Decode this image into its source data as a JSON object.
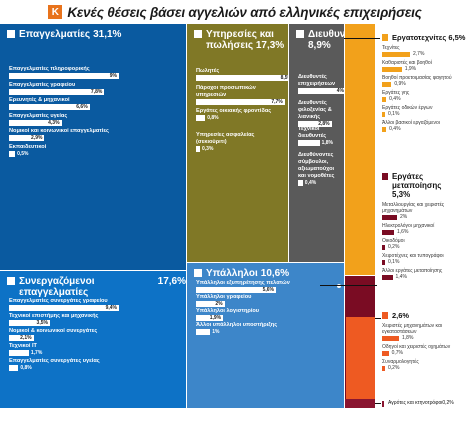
{
  "title": "Κενές θέσεις βάσει αγγελιών από ελληνικές επιχειρήσεις",
  "logo_icon": "k-logo-icon",
  "colors": {
    "professionals": "#0a5aa0",
    "services": "#807826",
    "managers": "#5a5a5a",
    "associates": "#0d72c6",
    "clerks": "#3d86c9",
    "crafts": "#f2a11b",
    "operators": "#7a0c23",
    "elementary": "#ee5a22",
    "agriculture": "#8a1530"
  },
  "chart_data": {
    "type": "treemap",
    "title": "Κενές θέσεις βάσει αγγελιών από ελληνικές επιχειρήσεις",
    "groups": [
      {
        "key": "professionals",
        "name": "Επαγγελματίες",
        "value": 31.1,
        "value_label": "31,1%",
        "items": [
          {
            "name": "Επαγγελματίες πληροφορικής",
            "value": 9,
            "value_label": "9%"
          },
          {
            "name": "Επαγγελματίες γραφείου",
            "value": 7.8,
            "value_label": "7,8%"
          },
          {
            "name": "Ερευνητές & μηχανικοί",
            "value": 6.6,
            "value_label": "6,6%"
          },
          {
            "name": "Επαγγελματίες υγείας",
            "value": 4.3,
            "value_label": "4,3%"
          },
          {
            "name": "Νομικοί και κοινωνικοί επαγγελματίες",
            "value": 2.9,
            "value_label": "2,9%"
          },
          {
            "name": "Εκπαιδευτικοί",
            "value": 0.5,
            "value_label": "0,5%"
          }
        ]
      },
      {
        "key": "services",
        "name": "Υπηρεσίες και πωλήσεις",
        "value": 17.3,
        "value_label": "17,3%",
        "items": [
          {
            "name": "Πωλητές",
            "value": 8.5,
            "value_label": "8,5%"
          },
          {
            "name": "Πάροχοι προσωπικών υπηρεσιών",
            "value": 7.7,
            "value_label": "7,7%"
          },
          {
            "name": "Εργάτες οικιακής φροντίδας",
            "value": 0.8,
            "value_label": "0,8%"
          },
          {
            "name": "Υπηρεσίες ασφαλείας (σεκιούριτι)",
            "value": 0.3,
            "value_label": "0,3%"
          }
        ]
      },
      {
        "key": "managers",
        "name": "Διευθυντές",
        "value": 8.9,
        "value_label": "8,9%",
        "items": [
          {
            "name": "Διευθυντές επιχειρήσεων",
            "value": 4,
            "value_label": "4%"
          },
          {
            "name": "Διευθυντές φιλοξενίας & λιανικής",
            "value": 2.8,
            "value_label": "2,8%"
          },
          {
            "name": "Τεχνικοί διευθυντές",
            "value": 1.8,
            "value_label": "1,8%"
          },
          {
            "name": "Διευθύνοντες σύμβουλοι, αξιωματούχοι και νομοθέτες",
            "value": 0.4,
            "value_label": "0,4%"
          }
        ]
      },
      {
        "key": "associates",
        "name": "Συνεργαζόμενοι επαγγελματίες",
        "value": 17.6,
        "value_label": "17,6%",
        "items": [
          {
            "name": "Επαγγελματίες συνεργάτες γραφείου",
            "value": 9.4,
            "value_label": "9,4%"
          },
          {
            "name": "Τεχνικοί επιστήμης και μηχανικής",
            "value": 3.5,
            "value_label": "3,5%"
          },
          {
            "name": "Νομικοί & κοινωνικοί συνεργάτες",
            "value": 2.1,
            "value_label": "2,1%"
          },
          {
            "name": "Τεχνικοί ΙΤ",
            "value": 1.7,
            "value_label": "1,7%"
          },
          {
            "name": "Επαγγελματίες συνεργάτες υγείας",
            "value": 0.8,
            "value_label": "0,8%"
          }
        ]
      },
      {
        "key": "clerks",
        "name": "Υπάλληλοι",
        "value": 10.6,
        "value_label": "10,6%",
        "items": [
          {
            "name": "Υπάλληλοι εξυπηρέτησης πελατών",
            "value": 5.6,
            "value_label": "5,6%"
          },
          {
            "name": "Υπάλληλοι γραφείου",
            "value": 2,
            "value_label": "2%"
          },
          {
            "name": "Υπάλληλοι λογιστηρίου",
            "value": 1.9,
            "value_label": "1,9%"
          },
          {
            "name": "Άλλοι υπάλληλοι υποστήριξης",
            "value": 1,
            "value_label": "1%"
          }
        ]
      },
      {
        "key": "crafts",
        "name": "Εργατοτεχνίτες",
        "value": 6.5,
        "value_label": "6,5%",
        "items": [
          {
            "name": "Τεχνίτες",
            "value": 2.7,
            "value_label": "2,7%"
          },
          {
            "name": "Καθαριστές και βοηθοί",
            "value": 1.9,
            "value_label": "1,9%"
          },
          {
            "name": "Βοηθοί προετοιμασίας φαγητού",
            "value": 0.9,
            "value_label": "0,9%"
          },
          {
            "name": "Εργάτες γης",
            "value": 0.4,
            "value_label": "0,4%"
          },
          {
            "name": "Εργάτες οδικών έργων",
            "value": 0.1,
            "value_label": "0,1%"
          },
          {
            "name": "Άλλοι βασικοί εργαζόμενοι",
            "value": 0.4,
            "value_label": "0,4%"
          }
        ]
      },
      {
        "key": "operators",
        "name": "Εργάτες μεταποίησης",
        "value": 5.3,
        "value_label": "5,3%",
        "items": [
          {
            "name": "Μεταλλουργίας και χειριστές μηχανημάτων",
            "value": 2,
            "value_label": "2%"
          },
          {
            "name": "Ηλεκτρολόγοι μηχανικοί",
            "value": 1.6,
            "value_label": "1,6%"
          },
          {
            "name": "Οικοδόμοι",
            "value": 0.2,
            "value_label": "0,2%"
          },
          {
            "name": "Χειροτέχνες και τυπογράφοι",
            "value": 0.1,
            "value_label": "0,1%"
          },
          {
            "name": "Άλλοι εργάτες μεταποίησης",
            "value": 1.4,
            "value_label": "1,4%"
          }
        ]
      },
      {
        "key": "elementary",
        "name": "",
        "value": 2.6,
        "value_label": "2,6%",
        "items": [
          {
            "name": "Χειριστές μηχανημάτων και εγκαταστάσεων",
            "value": 1.8,
            "value_label": "1,8%"
          },
          {
            "name": "Οδηγοί και χειριστές οχημάτων",
            "value": 0.7,
            "value_label": "0,7%"
          },
          {
            "name": "Συναρμολογητές",
            "value": 0.2,
            "value_label": "0,2%"
          }
        ]
      },
      {
        "key": "agriculture",
        "name": "Αγρότες και κτηνοτρόφοι",
        "value": 0.2,
        "value_label": "0,2%",
        "items": []
      }
    ]
  }
}
